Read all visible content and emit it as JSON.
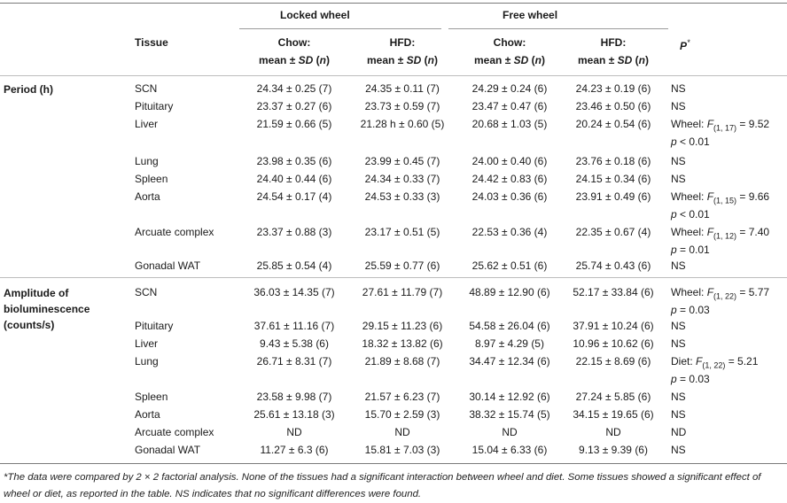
{
  "groups": {
    "locked": "Locked wheel",
    "free": "Free wheel"
  },
  "headers": {
    "tissue": "Tissue",
    "chow_locked": [
      "Chow:",
      "mean ± SD (n)"
    ],
    "hfd_locked": [
      "HFD:",
      "mean ± SD (n)"
    ],
    "chow_free": [
      "Chow:",
      "mean ± SD (n)"
    ],
    "hfd_free": [
      "HFD:",
      "mean ± SD (n)"
    ],
    "p": "P*"
  },
  "sections": [
    {
      "label": [
        "Period (h)"
      ],
      "rows": [
        {
          "tissue": "SCN",
          "lc": "24.34 ± 0.25 (7)",
          "lh": "24.35 ± 0.11 (7)",
          "fc": "24.29 ± 0.24 (6)",
          "fh": "24.23 ± 0.19 (6)",
          "p": [
            "NS"
          ]
        },
        {
          "tissue": "Pituitary",
          "lc": "23.37 ± 0.27 (6)",
          "lh": "23.73 ± 0.59 (7)",
          "fc": "23.47 ± 0.47 (6)",
          "fh": "23.46 ± 0.50 (6)",
          "p": [
            "NS"
          ]
        },
        {
          "tissue": "Liver",
          "lc": "21.59 ± 0.66 (5)",
          "lh": "21.28 h ± 0.60 (5)",
          "fc": "20.68 ± 1.03 (5)",
          "fh": "20.24 ± 0.54 (6)",
          "p": [
            "Wheel: F(1, 17) = 9.52",
            "p < 0.01"
          ]
        },
        {
          "tissue": "Lung",
          "lc": "23.98 ± 0.35 (6)",
          "lh": "23.99 ± 0.45 (7)",
          "fc": "24.00 ± 0.40 (6)",
          "fh": "23.76 ± 0.18 (6)",
          "p": [
            "NS"
          ]
        },
        {
          "tissue": "Spleen",
          "lc": "24.40 ± 0.44 (6)",
          "lh": "24.34 ± 0.33 (7)",
          "fc": "24.42 ± 0.83 (6)",
          "fh": "24.15 ± 0.34 (6)",
          "p": [
            "NS"
          ]
        },
        {
          "tissue": "Aorta",
          "lc": "24.54 ± 0.17 (4)",
          "lh": "24.53 ± 0.33 (3)",
          "fc": "24.03 ± 0.36 (6)",
          "fh": "23.91 ± 0.49 (6)",
          "p": [
            "Wheel: F(1, 15) = 9.66",
            "p < 0.01"
          ]
        },
        {
          "tissue": "Arcuate complex",
          "lc": "23.37 ± 0.88 (3)",
          "lh": "23.17 ± 0.51 (5)",
          "fc": "22.53 ± 0.36 (4)",
          "fh": "22.35 ± 0.67 (4)",
          "p": [
            "Wheel: F(1, 12) = 7.40",
            "p = 0.01"
          ]
        },
        {
          "tissue": "Gonadal WAT",
          "lc": "25.85 ± 0.54 (4)",
          "lh": "25.59 ± 0.77 (6)",
          "fc": "25.62 ± 0.51 (6)",
          "fh": "25.74 ± 0.43 (6)",
          "p": [
            "NS"
          ]
        }
      ]
    },
    {
      "label": [
        "Amplitude of",
        "bioluminescence",
        "(counts/s)"
      ],
      "rows": [
        {
          "tissue": "SCN",
          "lc": "36.03 ± 14.35 (7)",
          "lh": "27.61 ± 11.79 (7)",
          "fc": "48.89 ± 12.90 (6)",
          "fh": "52.17 ± 33.84 (6)",
          "p": [
            "Wheel: F(1, 22) = 5.77",
            "p = 0.03"
          ]
        },
        {
          "tissue": "Pituitary",
          "lc": "37.61 ± 11.16 (7)",
          "lh": "29.15 ± 11.23 (6)",
          "fc": "54.58 ± 26.04 (6)",
          "fh": "37.91 ± 10.24 (6)",
          "p": [
            "NS"
          ]
        },
        {
          "tissue": "Liver",
          "lc": "9.43 ± 5.38 (6)",
          "lh": "18.32 ± 13.82 (6)",
          "fc": "8.97 ± 4.29 (5)",
          "fh": "10.96 ± 10.62 (6)",
          "p": [
            "NS"
          ]
        },
        {
          "tissue": "Lung",
          "lc": "26.71 ± 8.31 (7)",
          "lh": "21.89 ± 8.68 (7)",
          "fc": "34.47 ± 12.34 (6)",
          "fh": "22.15 ± 8.69 (6)",
          "p": [
            "Diet: F(1, 22) = 5.21",
            "p = 0.03"
          ]
        },
        {
          "tissue": "Spleen",
          "lc": "23.58 ± 9.98 (7)",
          "lh": "21.57 ± 6.23 (7)",
          "fc": "30.14 ± 12.92 (6)",
          "fh": "27.24 ± 5.85 (6)",
          "p": [
            "NS"
          ]
        },
        {
          "tissue": "Aorta",
          "lc": "25.61 ± 13.18 (3)",
          "lh": "15.70 ± 2.59 (3)",
          "fc": "38.32 ± 15.74 (5)",
          "fh": "34.15 ± 19.65 (6)",
          "p": [
            "NS"
          ]
        },
        {
          "tissue": "Arcuate complex",
          "lc": "ND",
          "lh": "ND",
          "fc": "ND",
          "fh": "ND",
          "p": [
            "ND"
          ]
        },
        {
          "tissue": "Gonadal WAT",
          "lc": "11.27 ± 6.3 (6)",
          "lh": "15.81 ± 7.03 (3)",
          "fc": "15.04 ± 6.33 (6)",
          "fh": "9.13 ± 9.39 (6)",
          "p": [
            "NS"
          ]
        }
      ]
    }
  ],
  "footnote": "*The data were compared by 2 × 2 factorial analysis. None of the tissues had a significant interaction between wheel and diet. Some tissues showed a significant effect of wheel or diet, as reported in the table. NS indicates that no significant differences were found."
}
